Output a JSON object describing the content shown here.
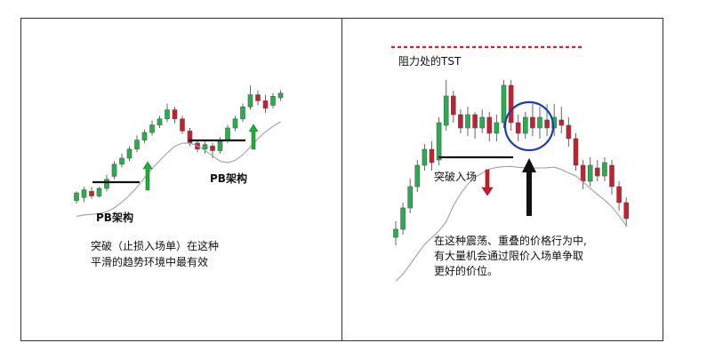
{
  "panels": {
    "left": {
      "pb_label_1": "PB架构",
      "pb_label_2": "PB架构",
      "caption_line1": "突破（止损入场单）在这种",
      "caption_line2": "平滑的趋势环境中最有效"
    },
    "right": {
      "resistance_label": "阻力处的TST",
      "breakout_label": "突破入场",
      "caption_line1": "在这种震荡、重叠的价格行为中,",
      "caption_line2": "有大量机会通过限价入场单争取",
      "caption_line3": "更好的价位。"
    }
  },
  "colors": {
    "bull": "#22b14c",
    "bear": "#c81e32",
    "ma": "#a0a0a0",
    "resistance": "#e02020",
    "circle": "#1c3ea8",
    "up_arrow": "#1fae36",
    "down_arrow": "#d0182c"
  },
  "chart_data": [
    {
      "type": "candlestick",
      "panel": "left",
      "series": [
        {
          "name": "",
          "candles": [
            {
              "o": 0.2,
              "c": 0.7,
              "h": 0.8,
              "l": 0.0
            },
            {
              "o": 0.4,
              "c": 0.9,
              "h": 1.1,
              "l": 0.1
            },
            {
              "o": 0.8,
              "c": 0.5,
              "h": 1.1,
              "l": 0.3
            },
            {
              "o": 0.5,
              "c": 1.0,
              "h": 1.1,
              "l": 0.4
            },
            {
              "o": 1.0,
              "c": 1.6,
              "h": 1.9,
              "l": 0.8
            },
            {
              "o": 1.8,
              "c": 2.6,
              "h": 2.8,
              "l": 1.6
            },
            {
              "o": 2.6,
              "c": 3.0,
              "h": 3.3,
              "l": 2.4
            },
            {
              "o": 3.0,
              "c": 3.6,
              "h": 3.8,
              "l": 2.8
            },
            {
              "o": 3.6,
              "c": 4.2,
              "h": 4.5,
              "l": 3.4
            },
            {
              "o": 4.2,
              "c": 4.7,
              "h": 4.9,
              "l": 4.0
            },
            {
              "o": 4.7,
              "c": 5.2,
              "h": 5.5,
              "l": 4.5
            },
            {
              "o": 5.2,
              "c": 5.6,
              "h": 5.8,
              "l": 5.0
            },
            {
              "o": 5.6,
              "c": 6.2,
              "h": 6.6,
              "l": 5.4
            },
            {
              "o": 6.2,
              "c": 5.6,
              "h": 6.4,
              "l": 5.3
            },
            {
              "o": 5.6,
              "c": 4.8,
              "h": 5.8,
              "l": 4.6
            },
            {
              "o": 4.8,
              "c": 4.0,
              "h": 5.0,
              "l": 3.8
            },
            {
              "o": 4.0,
              "c": 3.6,
              "h": 4.2,
              "l": 3.4
            },
            {
              "o": 3.6,
              "c": 3.9,
              "h": 4.1,
              "l": 3.3
            },
            {
              "o": 3.8,
              "c": 3.5,
              "h": 4.0,
              "l": 3.0
            },
            {
              "o": 3.5,
              "c": 4.2,
              "h": 4.4,
              "l": 3.3
            },
            {
              "o": 4.2,
              "c": 5.0,
              "h": 5.2,
              "l": 4.0
            },
            {
              "o": 5.0,
              "c": 5.6,
              "h": 5.8,
              "l": 4.8
            },
            {
              "o": 5.6,
              "c": 6.4,
              "h": 6.6,
              "l": 5.4
            },
            {
              "o": 6.4,
              "c": 7.2,
              "h": 7.8,
              "l": 6.2
            },
            {
              "o": 7.2,
              "c": 6.8,
              "h": 7.5,
              "l": 6.5
            },
            {
              "o": 6.8,
              "c": 6.3,
              "h": 7.2,
              "l": 6.0
            },
            {
              "o": 6.5,
              "c": 7.1,
              "h": 7.3,
              "l": 6.3
            },
            {
              "o": 7.0,
              "c": 7.3,
              "h": 7.5,
              "l": 6.8
            }
          ]
        }
      ]
    },
    {
      "type": "candlestick",
      "panel": "right",
      "series": [
        {
          "name": "",
          "candles": [
            {
              "o": 0.3,
              "c": 0.6,
              "h": 0.9,
              "l": 0.0
            },
            {
              "o": 0.6,
              "c": 1.4,
              "h": 1.6,
              "l": 0.4
            },
            {
              "o": 1.4,
              "c": 2.2,
              "h": 2.5,
              "l": 1.2
            },
            {
              "o": 2.2,
              "c": 3.0,
              "h": 3.2,
              "l": 2.0
            },
            {
              "o": 3.0,
              "c": 3.6,
              "h": 3.8,
              "l": 2.8
            },
            {
              "o": 3.6,
              "c": 3.1,
              "h": 3.9,
              "l": 2.8
            },
            {
              "o": 3.2,
              "c": 4.6,
              "h": 4.8,
              "l": 3.0
            },
            {
              "o": 4.5,
              "c": 5.6,
              "h": 6.2,
              "l": 4.3
            },
            {
              "o": 5.6,
              "c": 4.9,
              "h": 5.8,
              "l": 4.6
            },
            {
              "o": 4.9,
              "c": 4.4,
              "h": 5.1,
              "l": 4.2
            },
            {
              "o": 4.4,
              "c": 4.9,
              "h": 5.2,
              "l": 4.1
            },
            {
              "o": 4.9,
              "c": 4.4,
              "h": 5.0,
              "l": 4.0
            },
            {
              "o": 4.4,
              "c": 4.8,
              "h": 5.1,
              "l": 4.2
            },
            {
              "o": 4.8,
              "c": 4.2,
              "h": 5.0,
              "l": 3.9
            },
            {
              "o": 4.2,
              "c": 4.6,
              "h": 4.9,
              "l": 3.9
            },
            {
              "o": 4.6,
              "c": 6.0,
              "h": 6.2,
              "l": 4.4
            },
            {
              "o": 6.0,
              "c": 4.6,
              "h": 6.2,
              "l": 4.3
            },
            {
              "o": 4.6,
              "c": 4.2,
              "h": 4.9,
              "l": 3.9
            },
            {
              "o": 4.2,
              "c": 4.8,
              "h": 5.0,
              "l": 4.0
            },
            {
              "o": 4.8,
              "c": 4.4,
              "h": 5.3,
              "l": 4.1
            },
            {
              "o": 4.4,
              "c": 4.8,
              "h": 5.2,
              "l": 4.0
            },
            {
              "o": 4.7,
              "c": 4.4,
              "h": 5.3,
              "l": 4.1
            },
            {
              "o": 4.4,
              "c": 4.8,
              "h": 5.3,
              "l": 4.1
            },
            {
              "o": 4.7,
              "c": 4.5,
              "h": 5.2,
              "l": 4.2
            },
            {
              "o": 4.5,
              "c": 4.0,
              "h": 4.8,
              "l": 3.7
            },
            {
              "o": 4.0,
              "c": 3.0,
              "h": 4.2,
              "l": 2.8
            },
            {
              "o": 3.0,
              "c": 2.4,
              "h": 3.2,
              "l": 2.1
            },
            {
              "o": 2.4,
              "c": 3.0,
              "h": 3.3,
              "l": 2.2
            },
            {
              "o": 2.9,
              "c": 2.6,
              "h": 3.2,
              "l": 2.4
            },
            {
              "o": 2.6,
              "c": 3.1,
              "h": 3.3,
              "l": 2.4
            },
            {
              "o": 3.0,
              "c": 2.2,
              "h": 3.2,
              "l": 1.9
            },
            {
              "o": 2.2,
              "c": 1.6,
              "h": 2.4,
              "l": 1.3
            },
            {
              "o": 1.6,
              "c": 1.0,
              "h": 1.8,
              "l": 0.7
            }
          ]
        }
      ]
    }
  ]
}
